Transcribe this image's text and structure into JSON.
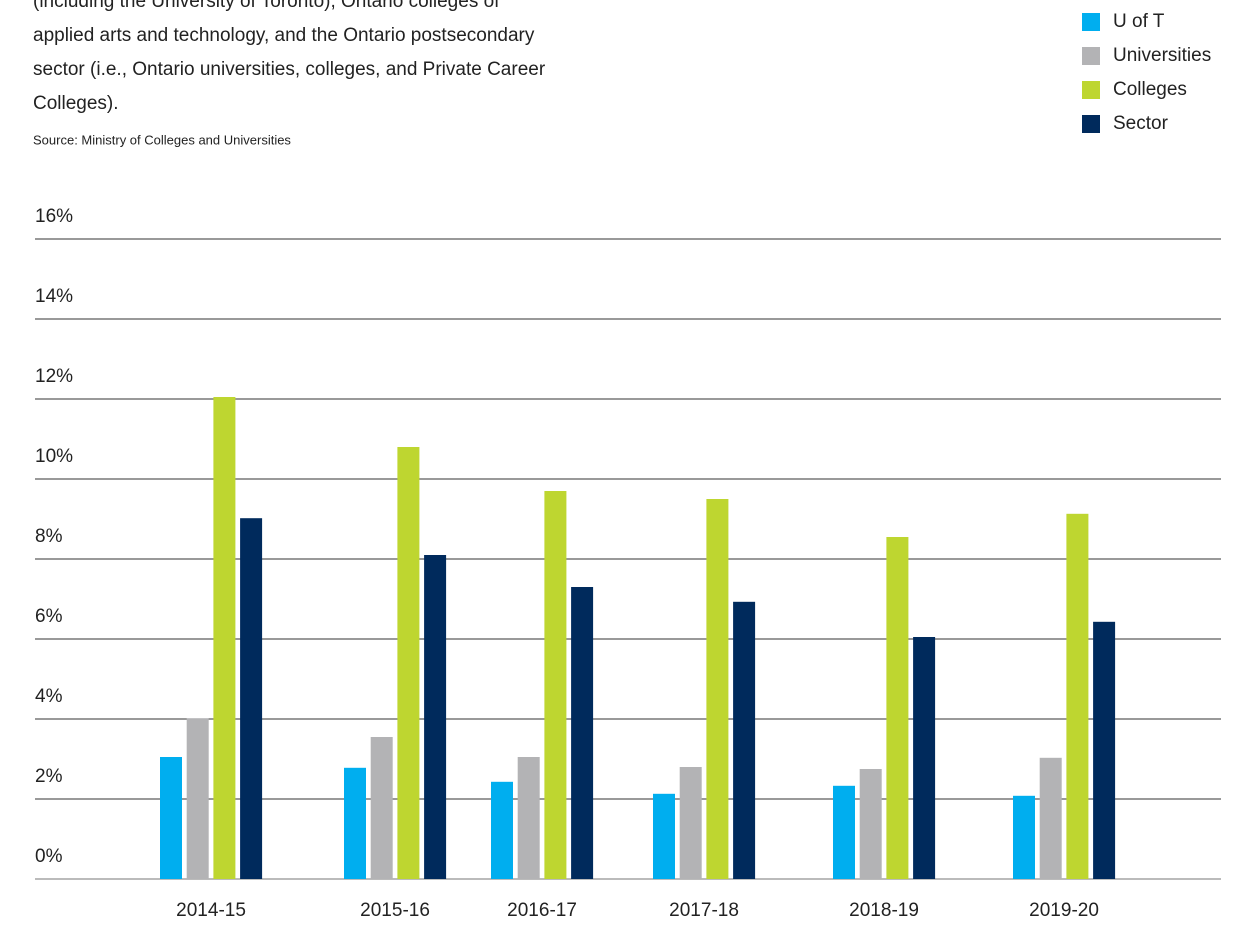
{
  "chart_data": {
    "type": "bar",
    "description": [
      "(including the University of Toronto), Ontario colleges of",
      "applied arts and technology, and the Ontario postsecondary",
      "sector (i.e., Ontario universities, colleges, and Private Career",
      "Colleges)."
    ],
    "source": "Source: Ministry of Colleges and Universities",
    "categories": [
      "2014-15",
      "2015-16",
      "2016-17",
      "2017-18",
      "2018-19",
      "2019-20"
    ],
    "series": [
      {
        "name": "U of T",
        "color": "#00aeef",
        "values": [
          3.05,
          2.78,
          2.43,
          2.13,
          2.33,
          2.08
        ]
      },
      {
        "name": "Universities",
        "color": "#b3b3b5",
        "values": [
          4.02,
          3.55,
          3.05,
          2.8,
          2.75,
          3.03
        ]
      },
      {
        "name": "Colleges",
        "color": "#bed630",
        "values": [
          12.05,
          10.8,
          9.7,
          9.5,
          8.55,
          9.13
        ]
      },
      {
        "name": "Sector",
        "color": "#002a5c",
        "values": [
          9.02,
          8.1,
          7.3,
          6.93,
          6.05,
          6.43
        ]
      }
    ],
    "ylim": [
      0,
      16
    ],
    "yticks": [
      {
        "value": 0,
        "label": "0%"
      },
      {
        "value": 2,
        "label": "2%"
      },
      {
        "value": 4,
        "label": "4%"
      },
      {
        "value": 6,
        "label": "6%"
      },
      {
        "value": 8,
        "label": "8%"
      },
      {
        "value": 10,
        "label": "10%"
      },
      {
        "value": 12,
        "label": "12%"
      },
      {
        "value": 14,
        "label": "14%"
      },
      {
        "value": 16,
        "label": "16%"
      }
    ],
    "grid": true,
    "legend": "top-right"
  }
}
